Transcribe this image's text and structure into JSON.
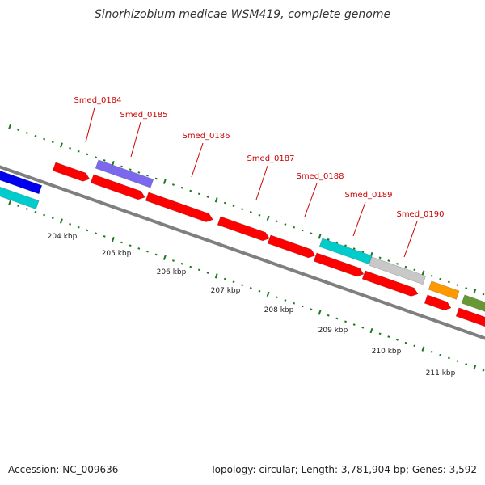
{
  "title": "Sinorhizobium medicae WSM419, complete genome",
  "footer": {
    "accession": "Accession: NC_009636",
    "stats": "Topology: circular; Length: 3,781,904 bp; Genes: 3,592"
  },
  "colors": {
    "backbone": "#7f7f7f",
    "tick": "#1a7a1a",
    "gene_label": "#cc0000",
    "red": "#ff0000",
    "blue": "#0000ee",
    "cyan": "#00cccc",
    "purple": "#7b68ee",
    "gray": "#c8c8c8",
    "orange": "#ff9900",
    "olive": "#669933"
  },
  "axis": {
    "kbp_labels": [
      "204 kbp",
      "205 kbp",
      "206 kbp",
      "207 kbp",
      "208 kbp",
      "209 kbp",
      "210 kbp",
      "211 kbp"
    ]
  },
  "gene_labels": [
    "Smed_0184",
    "Smed_0185",
    "Smed_0186",
    "Smed_0187",
    "Smed_0188",
    "Smed_0189",
    "Smed_0190"
  ],
  "features": [
    {
      "color": "blue",
      "track": "outer"
    },
    {
      "color": "cyan",
      "track": "inner"
    },
    {
      "color": "red",
      "track": "outer"
    },
    {
      "color": "purple",
      "track": "outer"
    },
    {
      "color": "red",
      "track": "inner"
    },
    {
      "color": "red",
      "track": "inner"
    },
    {
      "color": "red",
      "track": "inner"
    },
    {
      "color": "red",
      "track": "inner"
    },
    {
      "color": "cyan",
      "track": "outer"
    },
    {
      "color": "gray",
      "track": "outer"
    },
    {
      "color": "red",
      "track": "inner"
    },
    {
      "color": "red",
      "track": "inner"
    },
    {
      "color": "orange",
      "track": "outer"
    },
    {
      "color": "red",
      "track": "inner"
    },
    {
      "color": "olive",
      "track": "outer"
    },
    {
      "color": "red",
      "track": "inner"
    }
  ]
}
